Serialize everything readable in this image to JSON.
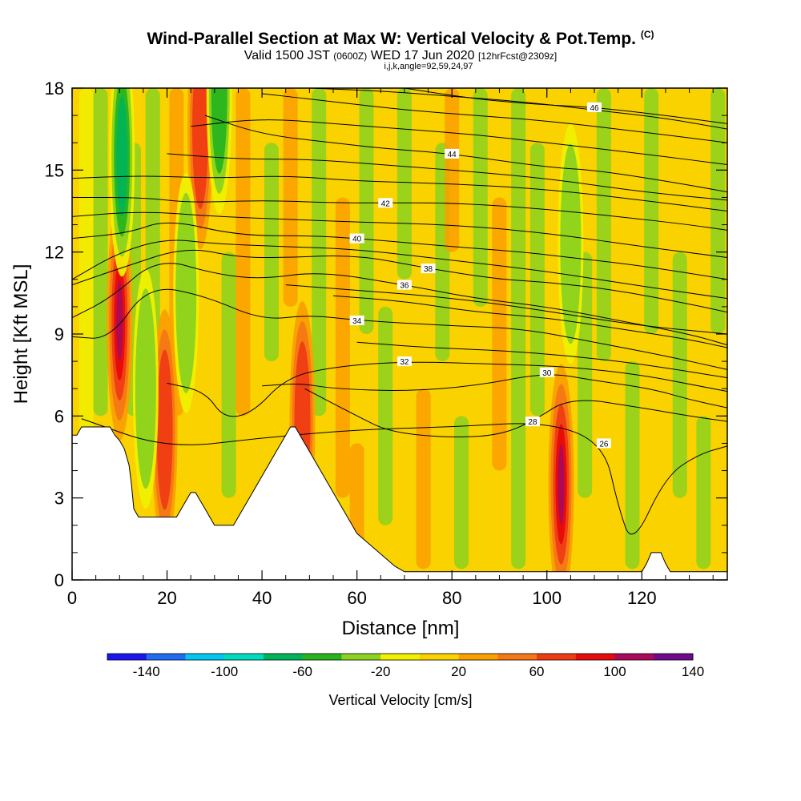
{
  "header": {
    "title": "Wind-Parallel Section at Max W: Vertical Velocity & Pot.Temp.",
    "title_mark": "(C)",
    "valid_prefix": "Valid 1500 JST",
    "valid_utc": "(0600Z)",
    "valid_date": "WED 17 Jun 2020",
    "forecast": "[12hrFcst@2309z]",
    "indices": "i,j,k,angle=92,59,24,97"
  },
  "chart_data": {
    "type": "heatmap",
    "xlabel": "Distance [nm]",
    "ylabel": "Height [Kft MSL]",
    "xlim": [
      0,
      138
    ],
    "ylim": [
      0,
      18
    ],
    "x_ticks": [
      0,
      20,
      40,
      60,
      80,
      100,
      120
    ],
    "y_ticks": [
      0,
      3,
      6,
      9,
      12,
      15,
      18
    ],
    "colorbar": {
      "label": "Vertical Velocity [cm/s]",
      "tick_labels": [
        "-140",
        "-100",
        "-60",
        "-20",
        "20",
        "60",
        "100",
        "140"
      ],
      "levels": [
        -160,
        -140,
        -120,
        -100,
        -80,
        -60,
        -40,
        -20,
        0,
        20,
        40,
        60,
        80,
        100,
        120,
        140,
        160
      ],
      "colors": [
        "#1a14f0",
        "#1f6cf2",
        "#00c8f0",
        "#00dcbe",
        "#00b45a",
        "#28b41e",
        "#8cd21e",
        "#f0f000",
        "#fad200",
        "#faa000",
        "#f57814",
        "#f03c14",
        "#e60a0a",
        "#aa0a5a",
        "#6e0a8c"
      ]
    },
    "theta_contours_label": "Pot.Temp.",
    "theta_contours": [
      {
        "label": "26",
        "x": [
          2,
          20,
          40,
          60,
          80,
          100,
          112,
          115,
          118,
          125,
          132,
          138
        ],
        "y": [
          5.9,
          4.8,
          5.2,
          5.5,
          5.6,
          5.8,
          5.0,
          2.7,
          1.2,
          3.8,
          4.6,
          4.9
        ]
      },
      {
        "label": "28",
        "x": [
          49,
          60,
          67,
          80,
          90,
          97,
          105,
          120,
          130,
          138
        ],
        "y": [
          7.0,
          6.0,
          5.4,
          5.2,
          5.3,
          5.8,
          6.7,
          6.3,
          6.0,
          5.8
        ]
      },
      {
        "label": "30",
        "x": [
          40,
          48,
          55,
          70,
          85,
          100,
          110,
          122,
          130,
          138
        ],
        "y": [
          7.1,
          7.2,
          7.0,
          6.9,
          7.1,
          7.6,
          7.3,
          7.0,
          6.6,
          6.3
        ]
      },
      {
        "label": "32",
        "x": [
          20,
          28,
          32,
          38,
          45,
          55,
          70,
          90,
          105,
          120,
          132,
          138
        ],
        "y": [
          7.2,
          6.9,
          5.9,
          6.1,
          7.4,
          7.8,
          8.0,
          7.9,
          7.8,
          7.5,
          7.1,
          6.9
        ]
      },
      {
        "label": "34",
        "x": [
          0,
          8,
          16,
          28,
          40,
          50,
          60,
          80,
          95,
          110,
          125,
          138
        ],
        "y": [
          8.9,
          8.8,
          10.8,
          10.4,
          9.5,
          9.7,
          9.5,
          9.3,
          9.2,
          8.7,
          8.2,
          7.7
        ]
      },
      {
        "label": "36",
        "x": [
          0,
          8,
          18,
          30,
          40,
          52,
          70,
          85,
          100,
          115,
          130,
          138
        ],
        "y": [
          9.6,
          10.3,
          11.8,
          11.2,
          11.0,
          11.3,
          10.8,
          10.3,
          10.0,
          9.5,
          9.0,
          8.6
        ]
      },
      {
        "label": "38",
        "x": [
          0,
          10,
          24,
          35,
          45,
          60,
          75,
          90,
          100,
          115,
          130,
          138
        ],
        "y": [
          10.8,
          11.4,
          12.2,
          11.8,
          11.8,
          11.9,
          11.4,
          11.0,
          10.9,
          10.6,
          10.1,
          9.8
        ]
      },
      {
        "label": "40",
        "x": [
          0,
          12,
          20,
          35,
          50,
          60,
          80,
          95,
          105,
          120,
          138
        ],
        "y": [
          12.5,
          12.7,
          13.2,
          12.6,
          12.6,
          12.5,
          12.2,
          12.0,
          11.8,
          11.5,
          11.0
        ]
      },
      {
        "label": "42",
        "x": [
          0,
          15,
          25,
          40,
          55,
          66,
          80,
          98,
          115,
          130,
          138
        ],
        "y": [
          14.0,
          14.0,
          13.8,
          13.9,
          13.8,
          13.8,
          13.8,
          13.6,
          13.3,
          13.0,
          12.8
        ]
      },
      {
        "label": "44",
        "x": [
          28,
          40,
          55,
          65,
          80,
          100,
          110,
          125,
          138
        ],
        "y": [
          17.0,
          16.3,
          16.0,
          15.8,
          15.6,
          15.1,
          15.0,
          14.6,
          14.2
        ]
      },
      {
        "label": "46",
        "x": [
          70,
          85,
          98,
          110,
          125,
          138
        ],
        "y": [
          18.0,
          17.6,
          17.4,
          17.3,
          17.0,
          16.7
        ]
      }
    ],
    "theta_contours_unlabeled": [
      {
        "x": [
          0,
          10,
          20,
          30,
          45,
          60,
          80,
          100,
          118,
          138
        ],
        "y": [
          11.0,
          12.0,
          12.5,
          12.3,
          12.2,
          12.1,
          11.7,
          11.3,
          10.8,
          10.3
        ]
      },
      {
        "x": [
          0,
          15,
          30,
          45,
          60,
          80,
          100,
          120,
          138
        ],
        "y": [
          13.3,
          13.5,
          13.3,
          13.2,
          13.1,
          13.0,
          12.7,
          12.2,
          11.8
        ]
      },
      {
        "x": [
          0,
          15,
          30,
          45,
          60,
          80,
          100,
          120,
          138
        ],
        "y": [
          14.7,
          14.8,
          14.7,
          14.8,
          14.6,
          14.5,
          14.3,
          13.9,
          13.5
        ]
      },
      {
        "x": [
          20,
          35,
          50,
          65,
          80,
          100,
          120,
          138
        ],
        "y": [
          15.6,
          15.4,
          15.4,
          15.2,
          15.0,
          14.7,
          14.2,
          13.9
        ]
      },
      {
        "x": [
          25,
          40,
          55,
          70,
          85,
          100,
          120,
          138
        ],
        "y": [
          16.6,
          16.9,
          16.7,
          16.5,
          16.3,
          16.0,
          15.6,
          15.2
        ]
      },
      {
        "x": [
          40,
          55,
          70,
          85,
          100,
          120,
          138
        ],
        "y": [
          17.8,
          17.5,
          17.2,
          17.0,
          16.8,
          16.4,
          16.0
        ]
      },
      {
        "x": [
          50,
          65,
          80,
          95,
          110,
          125,
          138
        ],
        "y": [
          18.0,
          17.9,
          17.7,
          17.5,
          17.2,
          16.9,
          16.5
        ]
      },
      {
        "x": [
          55,
          70,
          85,
          100,
          115,
          130,
          138
        ],
        "y": [
          10.4,
          10.2,
          9.8,
          9.6,
          9.2,
          8.8,
          8.5
        ]
      },
      {
        "x": [
          45,
          60,
          75,
          90,
          105,
          120,
          138
        ],
        "y": [
          10.8,
          10.6,
          10.4,
          10.1,
          9.7,
          9.3,
          9.0
        ]
      },
      {
        "x": [
          60,
          75,
          90,
          105,
          120,
          138
        ],
        "y": [
          8.7,
          8.5,
          8.4,
          8.2,
          7.9,
          7.4
        ]
      }
    ],
    "terrain": {
      "x": [
        0,
        1,
        2,
        3,
        8,
        9,
        10,
        11,
        12,
        12.5,
        13,
        14,
        15,
        16,
        17,
        18,
        20,
        21,
        22,
        23,
        24,
        25,
        26,
        27,
        28,
        29,
        30,
        31,
        32,
        33,
        34,
        35,
        36,
        37,
        38,
        39,
        40,
        41,
        42,
        43,
        44,
        45,
        46,
        47,
        48,
        49,
        50,
        51,
        52,
        53,
        54,
        55,
        56,
        57,
        58,
        59,
        60,
        62,
        64,
        66,
        68,
        69,
        70,
        120,
        121,
        122,
        123,
        124,
        125,
        126,
        127,
        138
      ],
      "y": [
        5.3,
        5.3,
        5.6,
        5.6,
        5.6,
        5.3,
        5.1,
        4.8,
        4.2,
        3.5,
        2.6,
        2.3,
        2.3,
        2.3,
        2.3,
        2.3,
        2.3,
        2.3,
        2.3,
        2.6,
        2.9,
        3.2,
        3.2,
        2.9,
        2.6,
        2.3,
        2.0,
        2.0,
        2.0,
        2.0,
        2.0,
        2.3,
        2.6,
        2.9,
        3.2,
        3.5,
        3.8,
        4.1,
        4.4,
        4.7,
        5.0,
        5.3,
        5.6,
        5.6,
        5.3,
        5.0,
        4.7,
        4.4,
        4.1,
        3.8,
        3.5,
        3.2,
        2.9,
        2.6,
        2.3,
        2.0,
        1.7,
        1.4,
        1.1,
        0.8,
        0.5,
        0.4,
        0.3,
        0.3,
        0.6,
        1.0,
        1.0,
        1.0,
        0.6,
        0.3,
        0.3,
        0.3
      ]
    },
    "updraft_cores": [
      {
        "x": 10,
        "y": 9.5,
        "value": 120
      },
      {
        "x": 19.5,
        "y": 5.5,
        "value": 80
      },
      {
        "x": 27,
        "y": 16.5,
        "value": 80
      },
      {
        "x": 103,
        "y": 3.5,
        "value": 110
      },
      {
        "x": 48.5,
        "y": 5.8,
        "value": 70
      }
    ],
    "downdraft_cores": [
      {
        "x": 10.5,
        "y": 15.5,
        "value": -80
      },
      {
        "x": 31,
        "y": 17.8,
        "value": -60
      },
      {
        "x": 15.5,
        "y": 7.0,
        "value": -40
      },
      {
        "x": 24,
        "y": 10.5,
        "value": -40
      },
      {
        "x": 105,
        "y": 12.3,
        "value": -40
      }
    ]
  }
}
